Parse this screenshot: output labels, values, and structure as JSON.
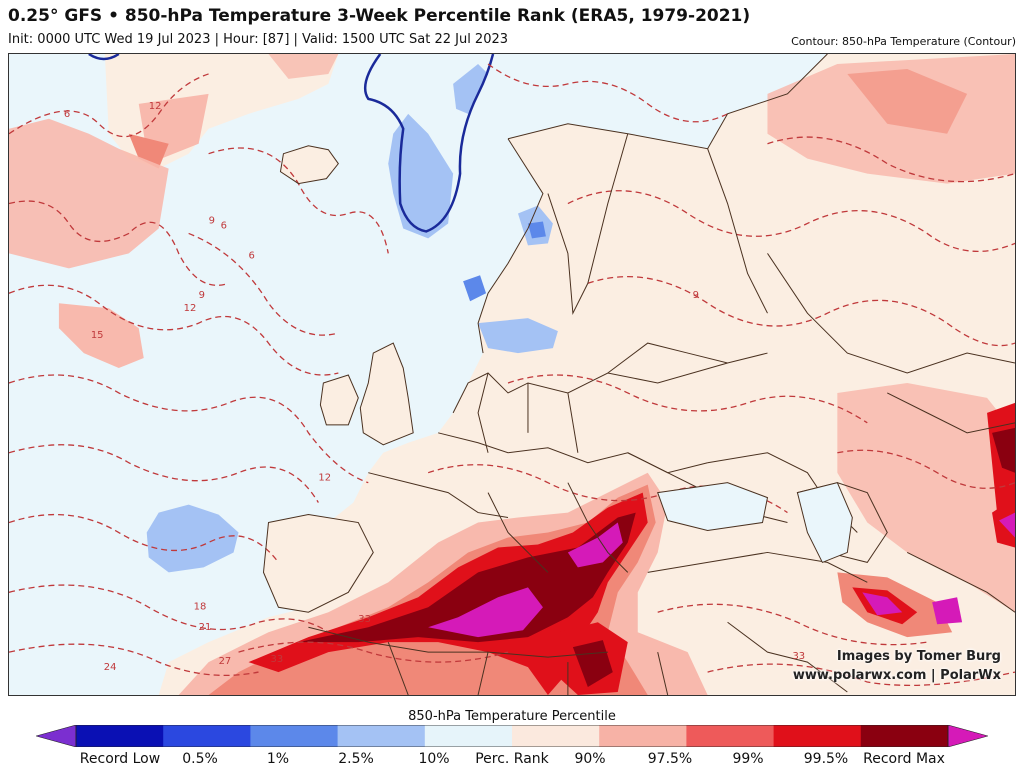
{
  "header": {
    "title": "0.25° GFS • 850-hPa Temperature 3-Week Percentile Rank (ERA5, 1979-2021)",
    "subtitle": "Init: 0000 UTC Wed 19 Jul 2023 | Hour: [87] | Valid: 1500 UTC Sat 22 Jul 2023",
    "contour_label": "Contour: 850-hPa Temperature (Contour)"
  },
  "credit": {
    "line1": "Images by Tomer Burg",
    "line2": "www.polarwx.com | PolarWx"
  },
  "colorbar": {
    "title": "850-hPa Temperature Percentile",
    "ticks": [
      "Record Low",
      "0.5%",
      "1%",
      "2.5%",
      "10%",
      "Perc. Rank",
      "90%",
      "97.5%",
      "99%",
      "99.5%",
      "Record Max"
    ],
    "colors": [
      "#7b2fd0",
      "#0a10b4",
      "#2b48e0",
      "#5c88ea",
      "#a4c2f4",
      "#e6f4fa",
      "#fbe9de",
      "#f7b2a6",
      "#ee5a5a",
      "#e0101a",
      "#8a0010",
      "#d51ab8"
    ]
  },
  "map": {
    "colors": {
      "ocean": "#eaf6fb",
      "land_neutral": "#fbeee2",
      "warm_90": "#f8b9ad",
      "warm_97": "#f08878",
      "warm_99": "#e0101a",
      "warm_995": "#8a0010",
      "record_max": "#d51ab8",
      "cool_10": "#a4c2f4",
      "cool_25": "#5c88ea",
      "contour": "#c0393b",
      "border": "#4a3120"
    },
    "contour_labels": [
      "6",
      "6",
      "6",
      "9",
      "9",
      "9",
      "12",
      "12",
      "12",
      "15",
      "18",
      "21",
      "24",
      "27",
      "33",
      "33",
      "33"
    ]
  }
}
